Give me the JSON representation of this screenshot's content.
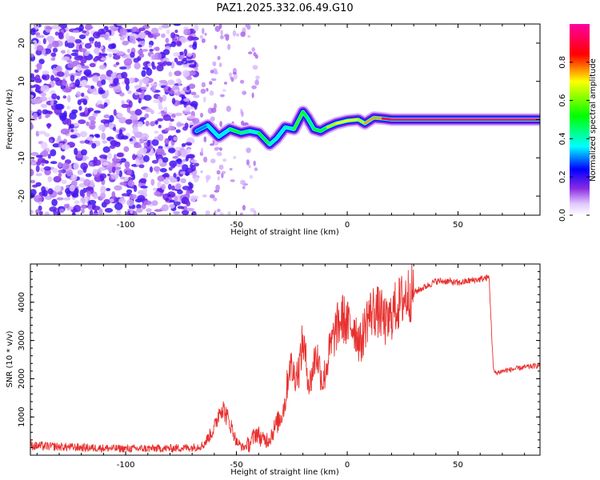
{
  "title": "PAZ1.2025.332.06.49.G10",
  "chart_data": [
    {
      "type": "heatmap",
      "xlabel": "Height of straight line (km)",
      "ylabel": "Frequency (Hz)",
      "xlim": [
        -143,
        87
      ],
      "ylim": [
        -25,
        25
      ],
      "xticks": [
        -100,
        -50,
        0,
        50
      ],
      "yticks": [
        -20,
        -10,
        0,
        10,
        20
      ],
      "xtick_labels": [
        "-100",
        "-50",
        "0",
        "50"
      ],
      "ytick_labels": [
        "-20",
        "-10",
        "0",
        "10",
        "20"
      ],
      "colorbar": {
        "label": "Normalized spectral amplitude",
        "ticks": [
          0.0,
          0.2,
          0.4,
          0.6,
          0.8
        ],
        "tick_labels": [
          "0.0",
          "0.2",
          "0.4",
          "0.6",
          "0.8"
        ],
        "range": [
          0,
          1
        ]
      },
      "ridge": {
        "x": [
          -68,
          -63,
          -58,
          -53,
          -48,
          -44,
          -40,
          -35,
          -32,
          -28,
          -24,
          -20,
          -18,
          -15,
          -12,
          -9,
          -5,
          0,
          5,
          8,
          12,
          16,
          20,
          30,
          50,
          70,
          87
        ],
        "y": [
          -3,
          -1.5,
          -4.5,
          -2.5,
          -3.5,
          -3,
          -3.5,
          -6.5,
          -5,
          -2,
          -2.5,
          2,
          0.5,
          -2.5,
          -3,
          -2,
          -1,
          -0.3,
          0,
          -1,
          0.5,
          0.3,
          0,
          0,
          0,
          0,
          0
        ],
        "amplitude": [
          0.25,
          0.3,
          0.35,
          0.35,
          0.5,
          0.45,
          0.4,
          0.5,
          0.4,
          0.35,
          0.4,
          0.55,
          0.5,
          0.45,
          0.5,
          0.5,
          0.65,
          0.7,
          0.7,
          0.65,
          0.75,
          0.75,
          0.9,
          0.95,
          0.95,
          0.95,
          0.95
        ]
      }
    },
    {
      "type": "line",
      "xlabel": "Height of straight line (km)",
      "ylabel": "SNR (10 * v/v)",
      "xlim": [
        -143,
        87
      ],
      "ylim": [
        0,
        5000
      ],
      "xticks": [
        -100,
        -50,
        0,
        50
      ],
      "yticks": [
        1000,
        2000,
        3000,
        4000
      ],
      "xtick_labels": [
        "-100",
        "-50",
        "0",
        "50"
      ],
      "ytick_labels": [
        "1000",
        "2000",
        "3000",
        "4000"
      ],
      "series": [
        {
          "color": "#e8302e",
          "x": [
            -143,
            -120,
            -100,
            -80,
            -70,
            -65,
            -60,
            -57,
            -55,
            -52,
            -50,
            -47,
            -44,
            -41,
            -38,
            -35,
            -32,
            -30,
            -28,
            -26,
            -24,
            -22,
            -20,
            -17,
            -14,
            -11,
            -8,
            -5,
            -2,
            0,
            3,
            6,
            9,
            12,
            15,
            18,
            21,
            24,
            27,
            30,
            35,
            40,
            45,
            50,
            55,
            60,
            64,
            66,
            67,
            70,
            75,
            80,
            87
          ],
          "y": [
            250,
            200,
            170,
            180,
            200,
            260,
            700,
            1300,
            1100,
            700,
            350,
            200,
            300,
            600,
            380,
            450,
            800,
            1000,
            1400,
            2400,
            2100,
            2200,
            3000,
            1800,
            2700,
            1900,
            2700,
            3300,
            3600,
            3400,
            3400,
            2900,
            3600,
            3800,
            3700,
            3400,
            3800,
            4000,
            4200,
            4250,
            4400,
            4550,
            4550,
            4500,
            4560,
            4600,
            4650,
            2200,
            2150,
            2200,
            2250,
            2300,
            2350
          ]
        }
      ]
    }
  ]
}
